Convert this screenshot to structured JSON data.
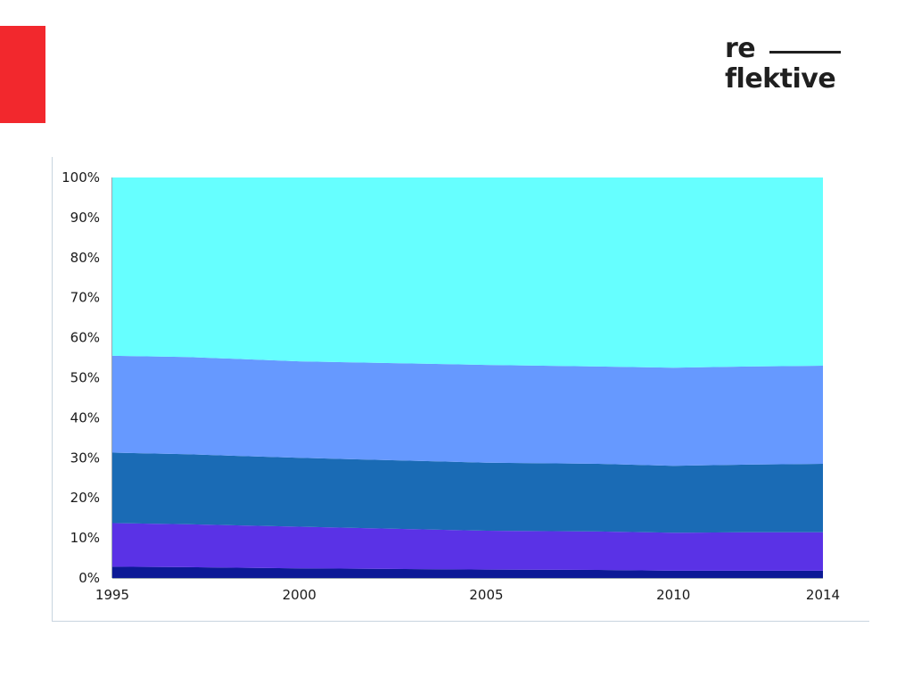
{
  "brand": {
    "accent_color": "#f2282d",
    "logo_line1": "re",
    "logo_line2": "flektive"
  },
  "chart_data": {
    "type": "area",
    "stacked": true,
    "normalized": true,
    "x": [
      1995,
      1997,
      2000,
      2005,
      2008,
      2010,
      2012,
      2014
    ],
    "xticks": [
      1995,
      2000,
      2005,
      2010,
      2014
    ],
    "xtick_labels": [
      "1995",
      "2000",
      "2005",
      "2010",
      "2014"
    ],
    "yticks": [
      0,
      10,
      20,
      30,
      40,
      50,
      60,
      70,
      80,
      90,
      100
    ],
    "ytick_labels": [
      "0%",
      "10%",
      "20%",
      "30%",
      "40%",
      "50%",
      "60%",
      "70%",
      "80%",
      "90%",
      "100%"
    ],
    "ylim": [
      0,
      100
    ],
    "xlim": [
      1995,
      2014
    ],
    "grid": false,
    "legend": "none",
    "series": [
      {
        "color": "#0c1a96",
        "values": [
          2.8,
          2.7,
          2.4,
          2.1,
          2.0,
          1.8,
          1.8,
          1.8
        ]
      },
      {
        "color": "#5a32e6",
        "values": [
          10.9,
          10.7,
          10.4,
          9.7,
          9.6,
          9.5,
          9.6,
          9.6
        ]
      },
      {
        "color": "#1a6bb5",
        "values": [
          17.6,
          17.5,
          17.2,
          17.0,
          16.9,
          16.7,
          16.9,
          17.1
        ]
      },
      {
        "color": "#6699ff",
        "values": [
          24.2,
          24.3,
          24.1,
          24.4,
          24.3,
          24.5,
          24.5,
          24.5
        ]
      },
      {
        "color": "#66ffff",
        "values": [
          44.5,
          44.8,
          45.9,
          46.8,
          47.2,
          47.5,
          47.2,
          47.0
        ]
      }
    ]
  }
}
